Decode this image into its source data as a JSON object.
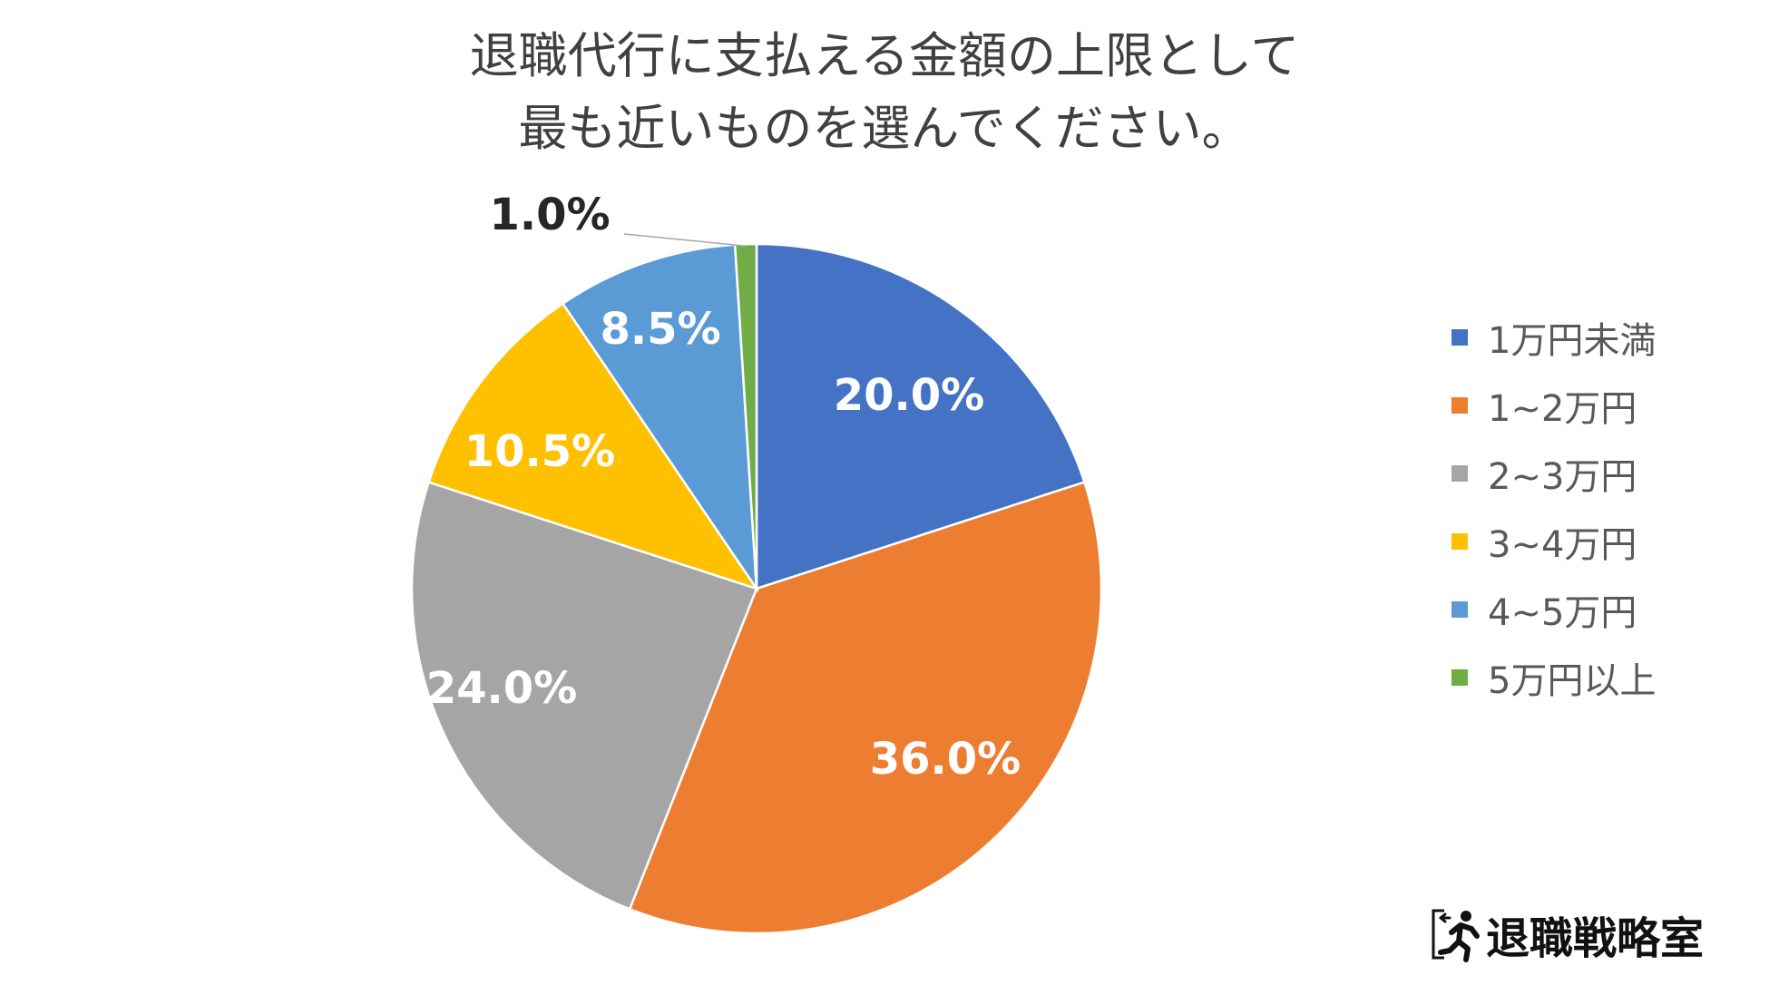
{
  "title_lines": [
    "退職代行に支払える金額の上限として",
    "最も近いものを選んでください。"
  ],
  "chart_data": {
    "type": "pie",
    "title": "退職代行に支払える金額の上限として最も近いものを選んでください。",
    "categories": [
      "1万円未満",
      "1~2万円",
      "2~3万円",
      "3~4万円",
      "4~5万円",
      "5万円以上"
    ],
    "values": [
      20.0,
      36.0,
      24.0,
      10.5,
      8.5,
      1.0
    ],
    "data_labels": [
      "20.0%",
      "36.0%",
      "24.0%",
      "10.5%",
      "8.5%",
      "1.0%"
    ],
    "colors": [
      "#4472C4",
      "#ED7D31",
      "#A5A5A5",
      "#FFC000",
      "#5B9BD5",
      "#70AD47"
    ],
    "label_colors": [
      "#FFFFFF",
      "#FFFFFF",
      "#FFFFFF",
      "#FFFFFF",
      "#FFFFFF",
      "#262626"
    ],
    "legend_position": "right"
  },
  "brand": {
    "name": "退職戦略室",
    "icon": "running-exit-icon"
  }
}
